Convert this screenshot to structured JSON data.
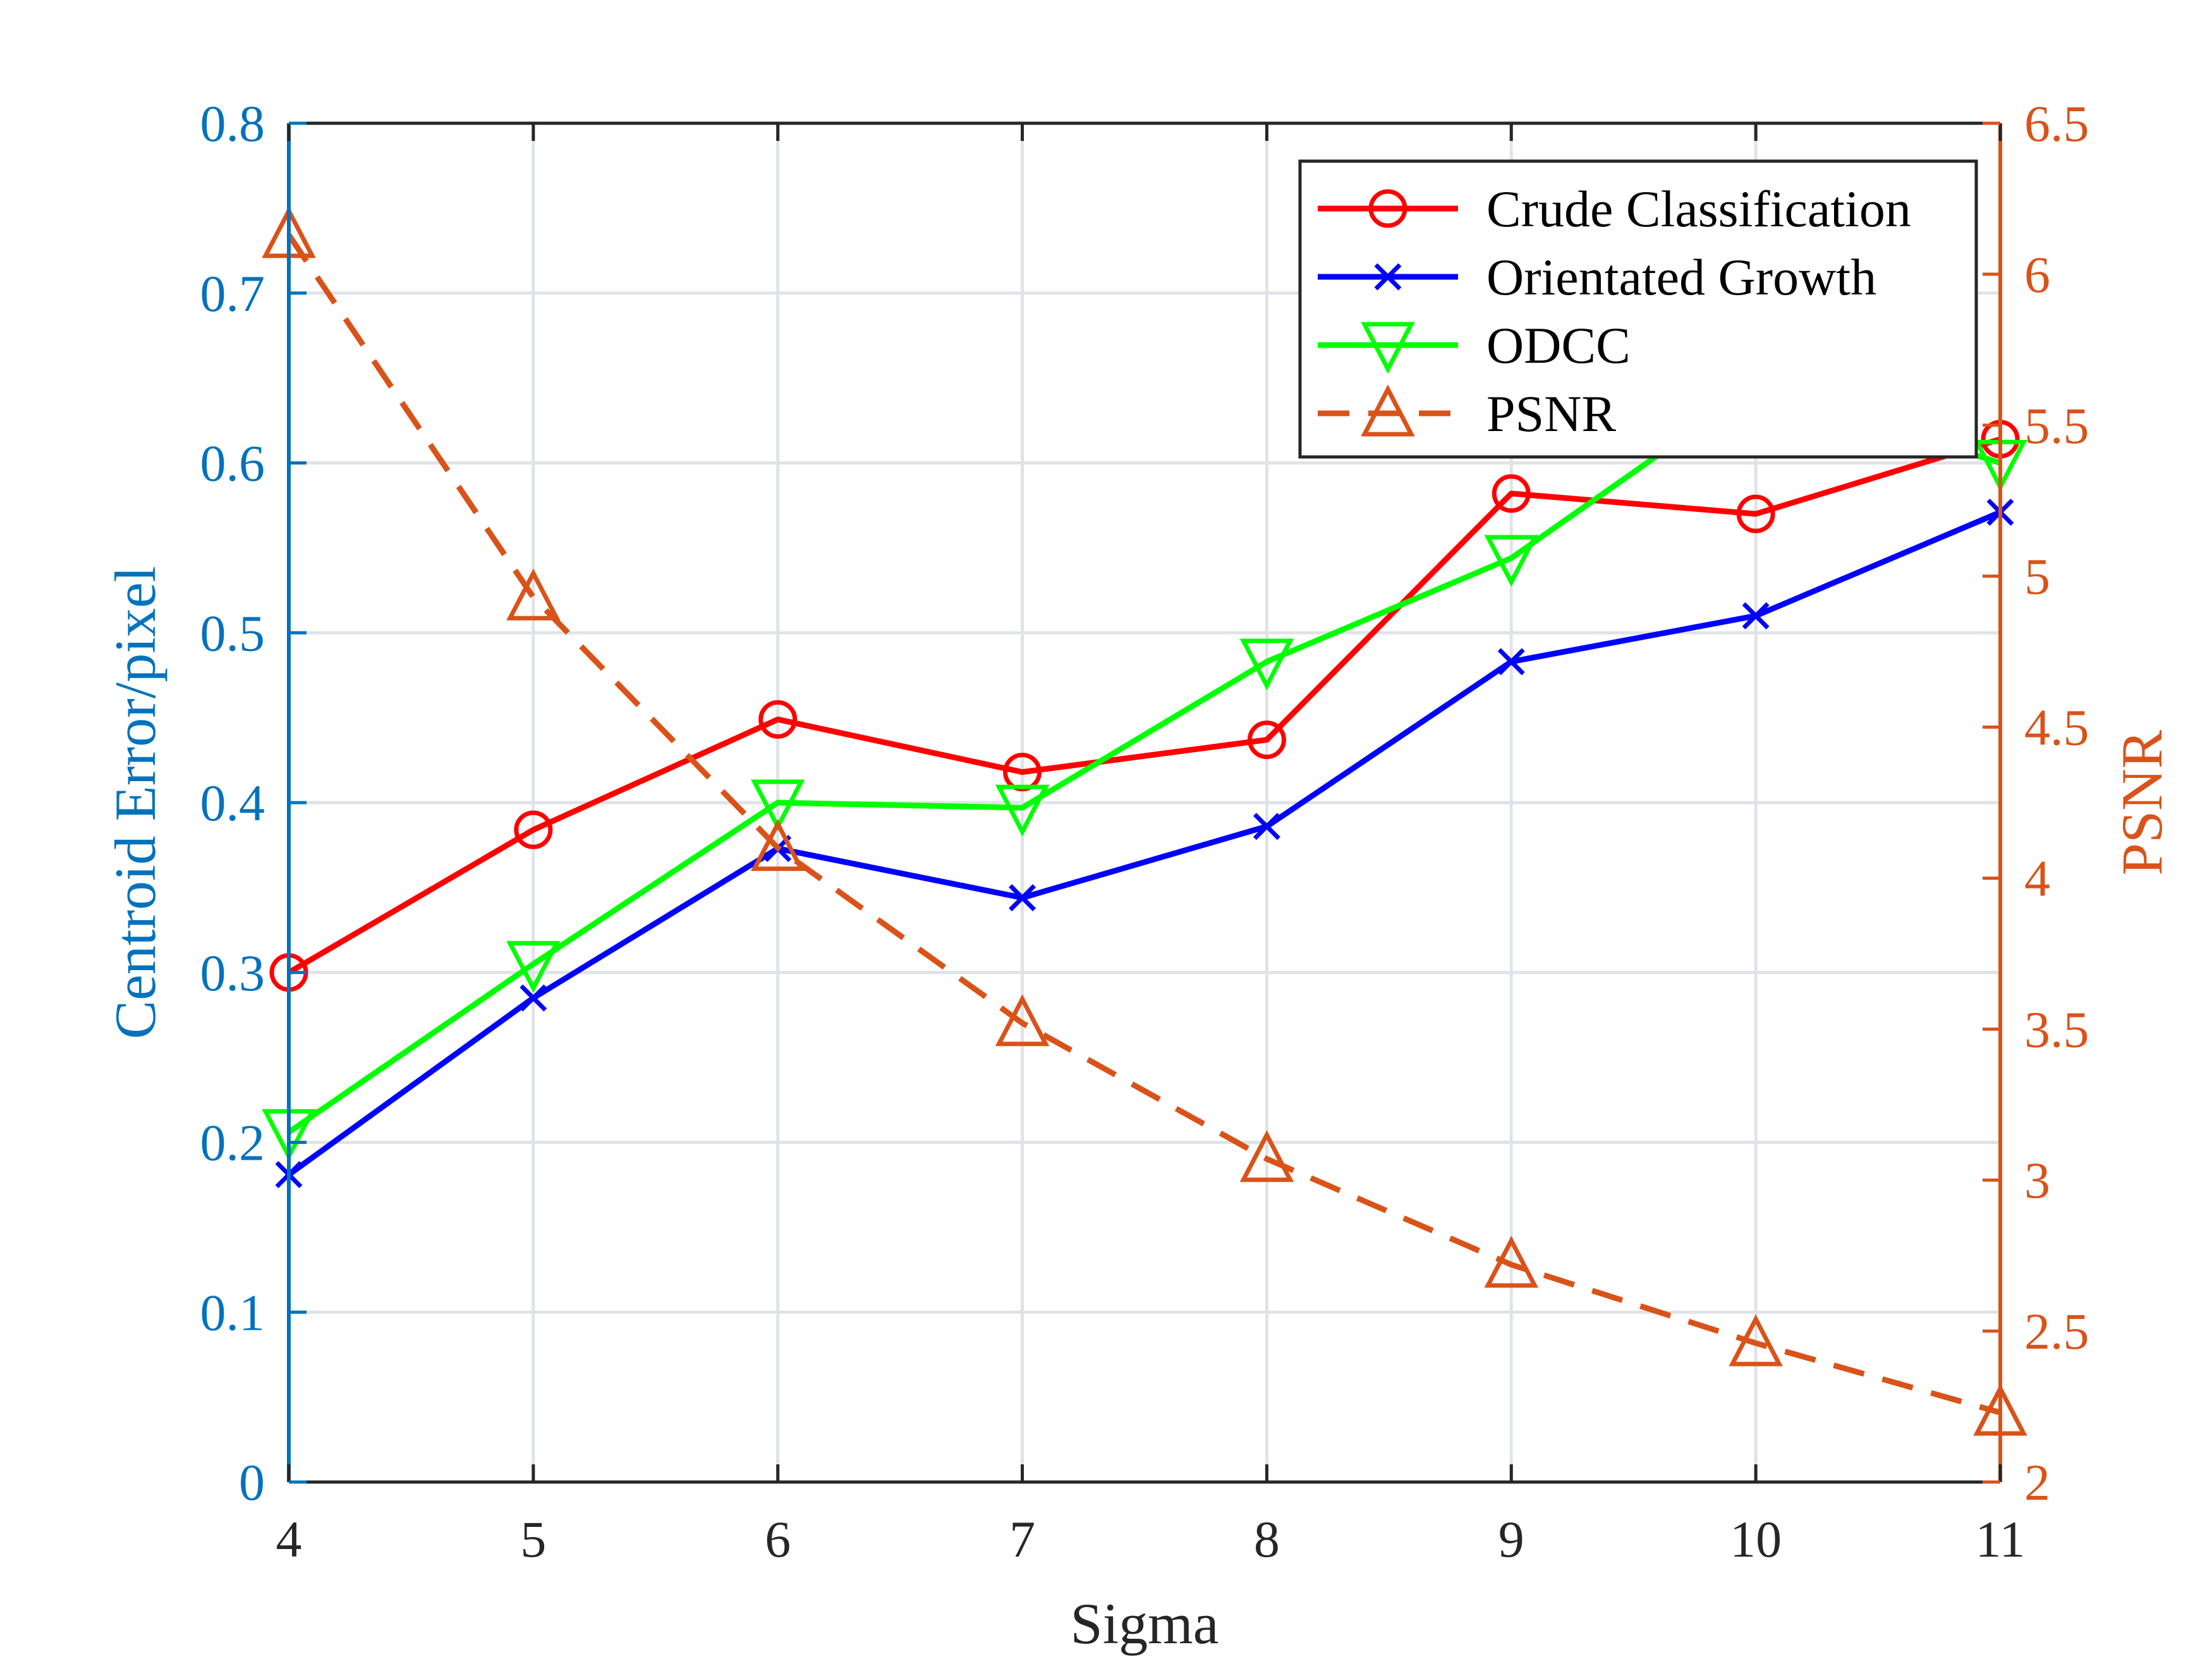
{
  "chart_data": {
    "type": "line",
    "title": "",
    "xlabel": "Sigma",
    "ylabel_left": "Centroid Error/pixel",
    "ylabel_right": "PSNR",
    "x": [
      4,
      5,
      6,
      7,
      8,
      9,
      10,
      11
    ],
    "xlim": [
      4,
      11
    ],
    "ylim_left": [
      0,
      0.8
    ],
    "ylim_right": [
      2,
      6.5
    ],
    "x_ticks": [
      "4",
      "5",
      "6",
      "7",
      "8",
      "9",
      "10",
      "11"
    ],
    "y_left_ticks": [
      "0",
      "0.1",
      "0.2",
      "0.3",
      "0.4",
      "0.5",
      "0.6",
      "0.7",
      "0.8"
    ],
    "y_right_ticks": [
      "2",
      "2.5",
      "3",
      "3.5",
      "4",
      "4.5",
      "5",
      "5.5",
      "6",
      "6.5"
    ],
    "grid": true,
    "legend_position": "top-right",
    "series": [
      {
        "name": "Crude Classification",
        "axis": "left",
        "color": "#ff0000",
        "marker": "circle",
        "dash": "solid",
        "values": [
          0.3,
          0.384,
          0.449,
          0.418,
          0.437,
          0.582,
          0.57,
          0.614
        ]
      },
      {
        "name": "Orientated Growth",
        "axis": "left",
        "color": "#0000ff",
        "marker": "x",
        "dash": "solid",
        "values": [
          0.181,
          0.285,
          0.373,
          0.344,
          0.386,
          0.483,
          0.51,
          0.571
        ]
      },
      {
        "name": "ODCC",
        "axis": "left",
        "color": "#00ff00",
        "marker": "triangle-down",
        "dash": "solid",
        "values": [
          0.206,
          0.305,
          0.4,
          0.397,
          0.483,
          0.544,
          0.645,
          0.6
        ]
      },
      {
        "name": "PSNR",
        "axis": "right",
        "color": "#d95319",
        "marker": "triangle-up",
        "dash": "dashed",
        "values": [
          6.13,
          4.93,
          4.1,
          3.52,
          3.07,
          2.72,
          2.46,
          2.23
        ]
      }
    ],
    "colors": {
      "left_axis": "#0072bd",
      "right_axis": "#d95319",
      "x_axis": "#262626",
      "grid": "#dfe3e8"
    }
  }
}
